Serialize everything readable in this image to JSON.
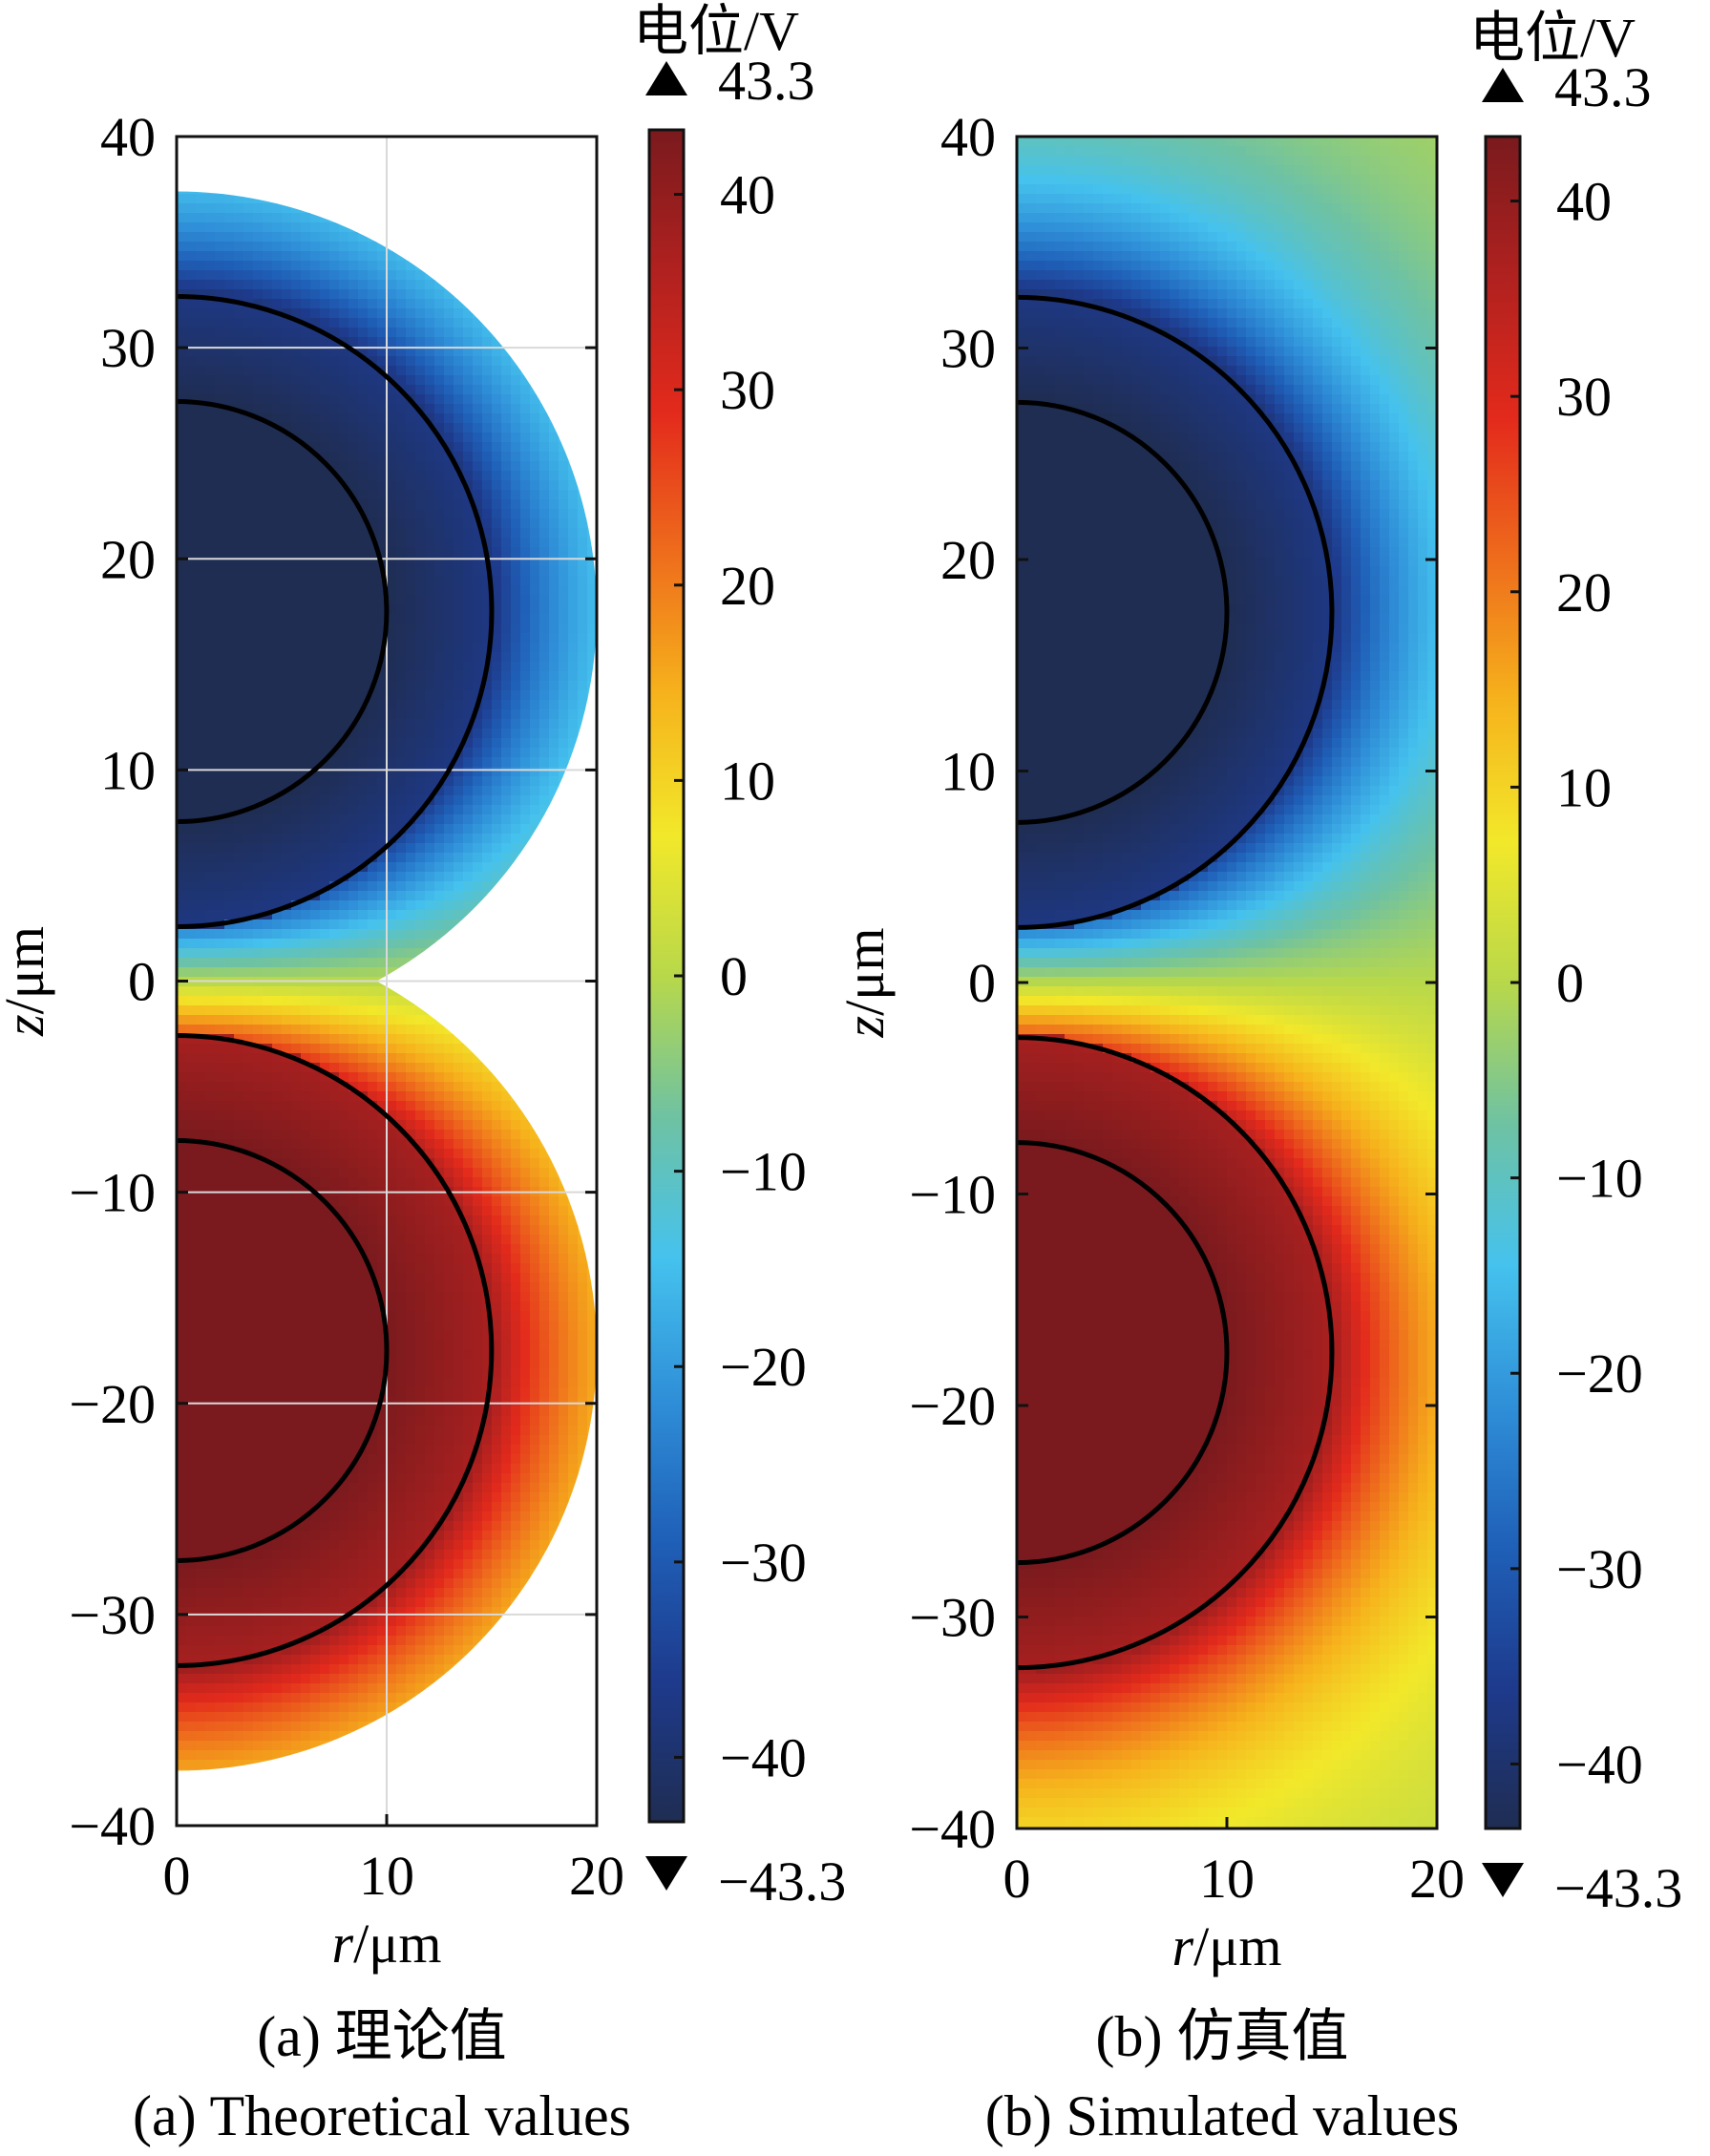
{
  "colormap": [
    "#1f2d52",
    "#1e3a8c",
    "#1f60b8",
    "#2f8fd8",
    "#45c2ee",
    "#6fc2a2",
    "#b8d84a",
    "#f2e82a",
    "#f6b21c",
    "#ee6c1c",
    "#e32a1c",
    "#b0211f",
    "#7a1a1e"
  ],
  "chart_data": [
    {
      "type": "heatmap",
      "panel": "a",
      "caption_cn": "(a) 理论值",
      "caption_en": "(a) Theoretical values",
      "xlabel_var": "r",
      "xlabel_unit": "/μm",
      "ylabel_var": "z",
      "ylabel_unit": "/μm",
      "xlim": [
        0,
        20
      ],
      "ylim": [
        -40,
        40
      ],
      "xticks": [
        "0",
        "10",
        "20"
      ],
      "yticks": [
        "40",
        "30",
        "20",
        "10",
        "0",
        "−10",
        "−20",
        "−30",
        "−40"
      ],
      "grid": true,
      "colorbar": {
        "title": "电位/V",
        "max_label": "43.3",
        "min_label": "−43.3",
        "ticks": [
          "40",
          "30",
          "20",
          "10",
          "0",
          "−10",
          "−20",
          "−30",
          "−40"
        ],
        "range": [
          -43.3,
          43.3
        ]
      },
      "field": {
        "electrodes": [
          {
            "center_z": 17.5,
            "inner_radius": 10,
            "outer_radius": 15,
            "potential": -43.3
          },
          {
            "center_z": -17.5,
            "inner_radius": 10,
            "outer_radius": 15,
            "potential": 43.3
          }
        ],
        "domain_radius": 20
      }
    },
    {
      "type": "heatmap",
      "panel": "b",
      "caption_cn": "(b) 仿真值",
      "caption_en": "(b) Simulated values",
      "xlabel_var": "r",
      "xlabel_unit": "/μm",
      "ylabel_var": "z",
      "ylabel_unit": "/μm",
      "xlim": [
        0,
        20
      ],
      "ylim": [
        -40,
        40
      ],
      "xticks": [
        "0",
        "10",
        "20"
      ],
      "yticks": [
        "40",
        "30",
        "20",
        "10",
        "0",
        "−10",
        "−20",
        "−30",
        "−40"
      ],
      "grid": false,
      "colorbar": {
        "title": "电位/V",
        "max_label": "43.3",
        "min_label": "−43.3",
        "ticks": [
          "40",
          "30",
          "20",
          "10",
          "0",
          "−10",
          "−20",
          "−30",
          "−40"
        ],
        "range": [
          -43.3,
          43.3
        ]
      },
      "field": {
        "electrodes": [
          {
            "center_z": 17.5,
            "inner_radius": 10,
            "outer_radius": 15,
            "potential": -43.3
          },
          {
            "center_z": -17.5,
            "inner_radius": 10,
            "outer_radius": 15,
            "potential": 43.3
          }
        ],
        "domain": "rectangle"
      }
    }
  ]
}
